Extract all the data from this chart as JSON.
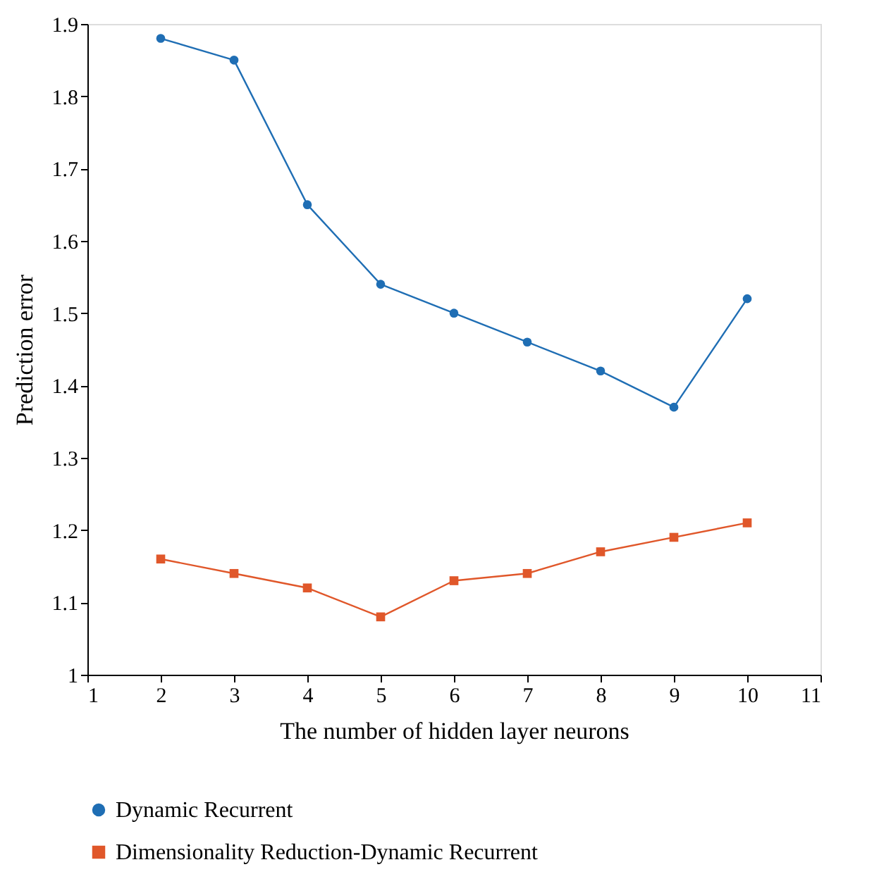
{
  "chart_data": {
    "type": "line",
    "xlabel": "The number of hidden layer neurons",
    "ylabel": "Prediction error",
    "x": [
      2,
      3,
      4,
      5,
      6,
      7,
      8,
      9,
      10
    ],
    "xlim": [
      1,
      11
    ],
    "xticks": [
      1,
      2,
      3,
      4,
      5,
      6,
      7,
      8,
      9,
      10,
      11
    ],
    "ylim": [
      1,
      1.9
    ],
    "yticks": [
      1,
      1.1,
      1.2,
      1.3,
      1.4,
      1.5,
      1.6,
      1.7,
      1.8,
      1.9
    ],
    "grid": false,
    "legend": "bottom",
    "line_style": "solid",
    "series": [
      {
        "name": "Dynamic Recurrent",
        "color": "#1f6eb4",
        "marker": "circle",
        "values": [
          1.88,
          1.85,
          1.65,
          1.54,
          1.5,
          1.46,
          1.42,
          1.37,
          1.52
        ]
      },
      {
        "name": "Dimensionality Reduction-Dynamic Recurrent",
        "color": "#e0572a",
        "marker": "square",
        "values": [
          1.16,
          1.14,
          1.12,
          1.08,
          1.13,
          1.14,
          1.17,
          1.19,
          1.21
        ]
      }
    ]
  }
}
